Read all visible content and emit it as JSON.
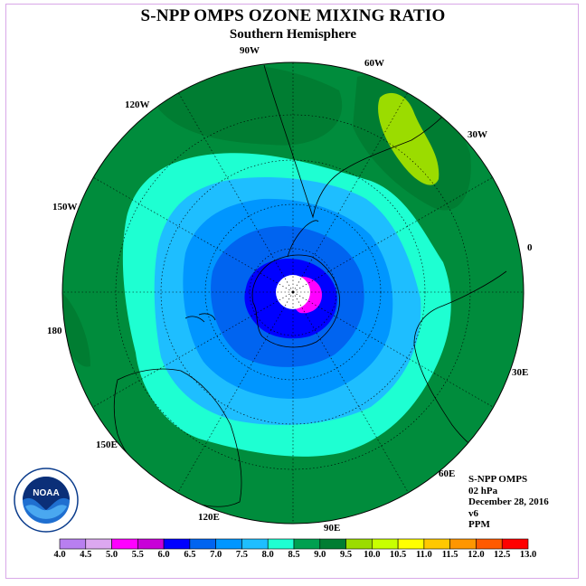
{
  "title": "S-NPP OMPS OZONE MIXING RATIO",
  "subtitle": "Southern Hemisphere",
  "longitude_labels": [
    {
      "text": "90W",
      "key": "a"
    },
    {
      "text": "60W",
      "key": "b"
    },
    {
      "text": "30W",
      "key": "c"
    },
    {
      "text": "0",
      "key": "d"
    },
    {
      "text": "30E",
      "key": "e"
    },
    {
      "text": "60E",
      "key": "f"
    },
    {
      "text": "90E",
      "key": "g"
    },
    {
      "text": "120E",
      "key": "h"
    },
    {
      "text": "150E",
      "key": "i"
    },
    {
      "text": "180",
      "key": "j"
    },
    {
      "text": "150W",
      "key": "k"
    },
    {
      "text": "120W",
      "key": "l"
    }
  ],
  "info": {
    "instrument": "S-NPP OMPS",
    "level": "02 hPa",
    "date": "December 28, 2016",
    "version": "v6",
    "units": "PPM"
  },
  "logo": {
    "text": "NOAA"
  },
  "colorbar": {
    "labels": [
      "4.0",
      "4.5",
      "5.0",
      "5.5",
      "6.0",
      "6.5",
      "7.0",
      "7.5",
      "8.0",
      "8.5",
      "9.0",
      "9.5",
      "10.0",
      "10.5",
      "11.0",
      "11.5",
      "12.0",
      "12.5",
      "13.0"
    ],
    "colors": [
      "#b87ff0",
      "#dca8f0",
      "#ff00ff",
      "#c800d8",
      "#0000ff",
      "#0064f0",
      "#0096ff",
      "#1ebeff",
      "#1effd2",
      "#00a050",
      "#007d32",
      "#9bdc00",
      "#c8ff00",
      "#ffff00",
      "#ffc800",
      "#ff9600",
      "#ff5a00",
      "#ff0000",
      "#8c5a3c"
    ]
  },
  "colors": {
    "ocean_background": "#008c3c",
    "contour_8_5": "#007d32",
    "contour_8_0": "#1effd2",
    "contour_7_5": "#1ebeff",
    "contour_7_0": "#0096ff",
    "contour_6_5": "#0064f0",
    "contour_6_0": "#0000ff",
    "contour_5_5": "#ff00ff",
    "contour_9_0": "#9bdc00"
  },
  "map_data": {
    "projection": "south polar stereographic",
    "field": "ozone mixing ratio (ppm) at 2 hPa",
    "pattern": "minimum near the pole (below 6.0 ppm), increasing outward to 8.0–8.5 ppm at mid-latitudes, local maximum above 9.0 ppm near 60W–30W"
  }
}
